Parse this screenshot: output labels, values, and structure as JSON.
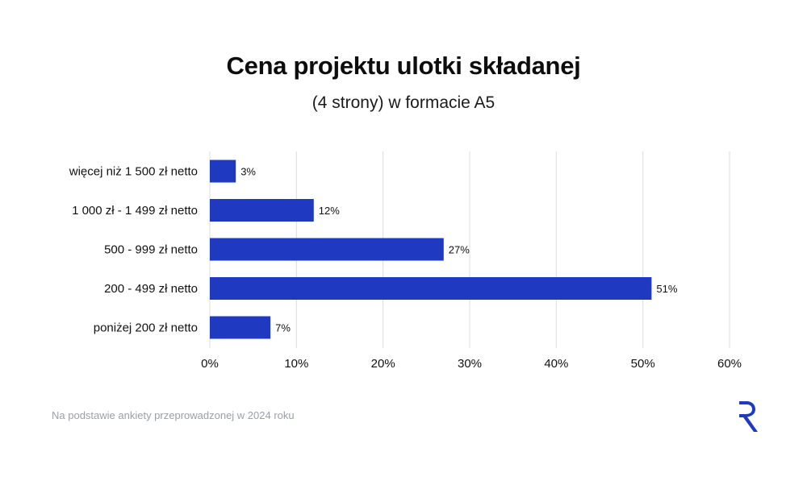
{
  "title": "Cena projektu ulotki składanej",
  "subtitle": "(4 strony) w formacie A5",
  "footnote": "Na podstawie ankiety przeprowadzonej w 2024 roku",
  "logo_icon": "r-logo-icon",
  "colors": {
    "bar": "#1f3ac0",
    "grid": "#dcdcdc",
    "text": "#111111",
    "footnote": "#9aa0a8",
    "logo": "#1f3ac0"
  },
  "chart_data": {
    "type": "bar",
    "orientation": "horizontal",
    "categories": [
      "więcej niż 1 500 zł netto",
      "1 000 zł - 1 499 zł netto",
      "500 - 999 zł netto",
      "200 - 499 zł netto",
      "poniżej 200 zł netto"
    ],
    "values": [
      3,
      12,
      27,
      51,
      7
    ],
    "value_labels": [
      "3%",
      "12%",
      "27%",
      "51%",
      "7%"
    ],
    "xlim": [
      0,
      60
    ],
    "xticks": [
      0,
      10,
      20,
      30,
      40,
      50,
      60
    ],
    "xtick_labels": [
      "0%",
      "10%",
      "20%",
      "30%",
      "40%",
      "50%",
      "60%"
    ],
    "xlabel": "",
    "ylabel": "",
    "grid": true,
    "legend": "none"
  }
}
